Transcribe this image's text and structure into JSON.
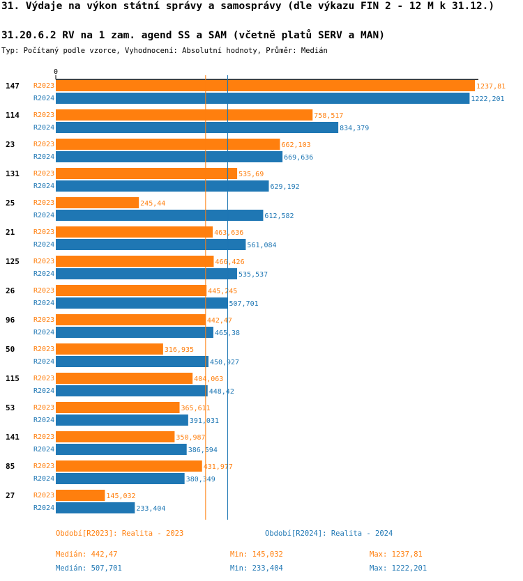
{
  "title": "31. Výdaje na výkon státní správy a samosprávy (dle výkazu FIN 2 - 12 M k 31.12.)",
  "subtitle": "31.20.6.2 RV na 1 zam. agend SS a SAM (včetně platů SERV a MAN)",
  "type_line": "Typ: Počítaný podle vzorce, Vyhodnocení: Absolutní hodnoty, Průměr: Medián",
  "colors": {
    "R2023": "#ff7f0e",
    "R2024": "#1f77b4"
  },
  "chart_data": {
    "type": "bar",
    "orientation": "horizontal",
    "axis_zero_label": "0",
    "categories": [
      "147",
      "114",
      "23",
      "131",
      "25",
      "21",
      "125",
      "26",
      "96",
      "50",
      "115",
      "53",
      "141",
      "85",
      "27"
    ],
    "series": [
      {
        "name": "R2023",
        "values": [
          1237.81,
          758.517,
          662.103,
          535.69,
          245.44,
          463.636,
          466.426,
          445.245,
          442.47,
          316.935,
          404.063,
          365.611,
          350.987,
          431.977,
          145.032
        ],
        "labels": [
          "1237,81",
          "758,517",
          "662,103",
          "535,69",
          "245,44",
          "463,636",
          "466,426",
          "445,245",
          "442,47",
          "316,935",
          "404,063",
          "365,611",
          "350,987",
          "431,977",
          "145,032"
        ]
      },
      {
        "name": "R2024",
        "values": [
          1222.201,
          834.379,
          669.636,
          629.192,
          612.582,
          561.084,
          535.537,
          507.701,
          465.38,
          450.927,
          448.42,
          391.031,
          386.594,
          380.349,
          233.404
        ],
        "labels": [
          "1222,201",
          "834,379",
          "669,636",
          "629,192",
          "612,582",
          "561,084",
          "535,537",
          "507,701",
          "465,38",
          "450,927",
          "448,42",
          "391,031",
          "386,594",
          "380,349",
          "233,404"
        ]
      }
    ],
    "median_lines": {
      "R2023": 442.47,
      "R2024": 507.701
    },
    "xlim": [
      0,
      1237.81
    ]
  },
  "legend": {
    "period_2023": "Období[R2023]: Realita - 2023",
    "period_2024": "Období[R2024]: Realita - 2024"
  },
  "stats": {
    "r2023": {
      "median": "Medián: 442,47",
      "min": "Min: 145,032",
      "max": "Max: 1237,81"
    },
    "r2024": {
      "median": "Medián: 507,701",
      "min": "Min: 233,404",
      "max": "Max: 1222,201"
    }
  }
}
